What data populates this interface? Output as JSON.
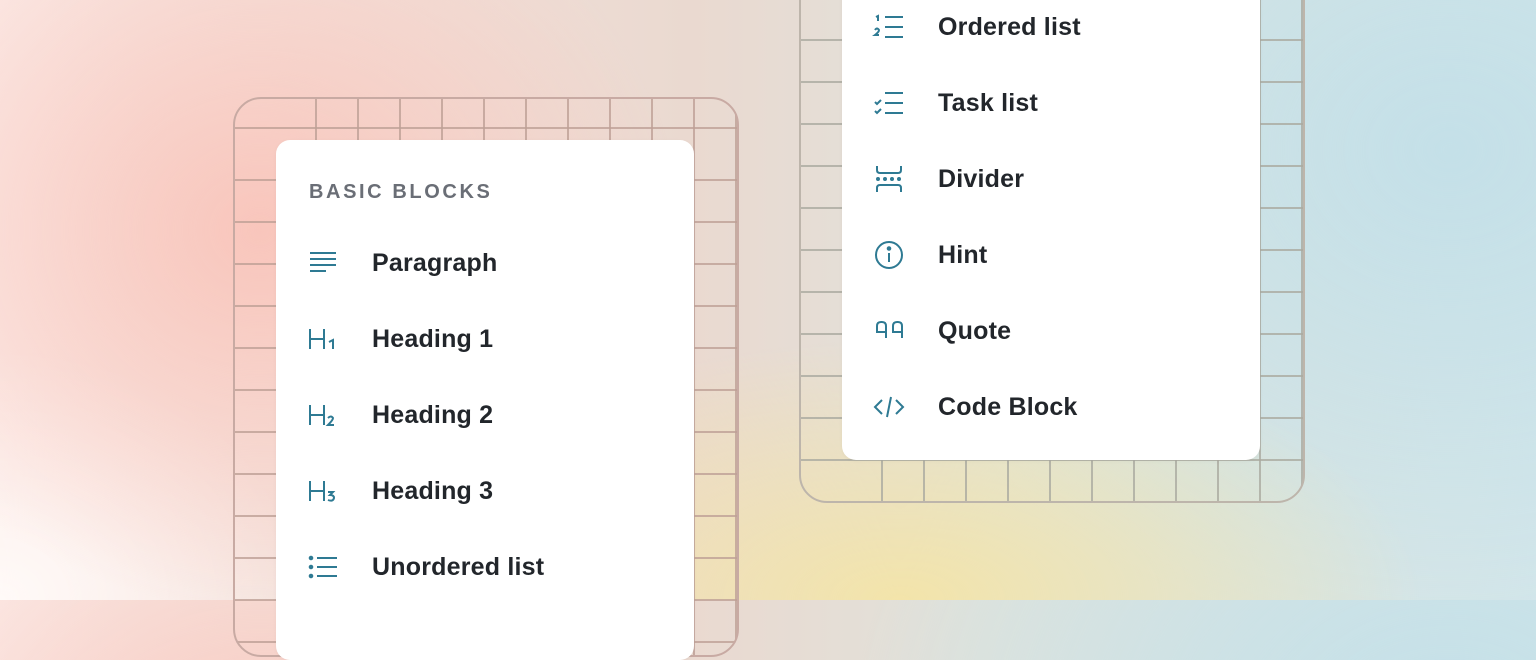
{
  "colors": {
    "icon": "#2e7a93",
    "text": "#22262b",
    "header": "#6a6e76"
  },
  "left_menu": {
    "header": "BASIC BLOCKS",
    "items": [
      {
        "label": "Paragraph",
        "icon": "paragraph-icon"
      },
      {
        "label": "Heading 1",
        "icon": "heading-1-icon"
      },
      {
        "label": "Heading 2",
        "icon": "heading-2-icon"
      },
      {
        "label": "Heading 3",
        "icon": "heading-3-icon"
      },
      {
        "label": "Unordered list",
        "icon": "unordered-list-icon"
      }
    ]
  },
  "right_menu": {
    "items": [
      {
        "label": "Ordered list",
        "icon": "ordered-list-icon"
      },
      {
        "label": "Task list",
        "icon": "task-list-icon"
      },
      {
        "label": "Divider",
        "icon": "divider-icon"
      },
      {
        "label": "Hint",
        "icon": "info-icon"
      },
      {
        "label": "Quote",
        "icon": "quote-icon"
      },
      {
        "label": "Code Block",
        "icon": "code-icon"
      }
    ]
  }
}
